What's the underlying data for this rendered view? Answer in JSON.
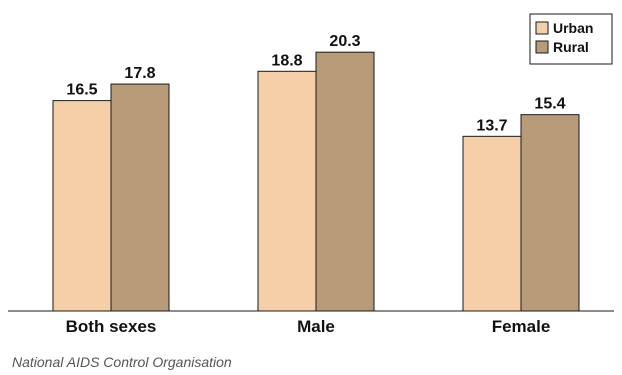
{
  "chart_data": {
    "type": "bar",
    "categories": [
      "Both sexes",
      "Male",
      "Female"
    ],
    "series": [
      {
        "name": "Urban",
        "values": [
          16.5,
          18.8,
          13.7
        ],
        "color": "#f5cfa8"
      },
      {
        "name": "Rural",
        "values": [
          17.8,
          20.3,
          15.4
        ],
        "color": "#b89c7a"
      }
    ],
    "ylim": [
      0,
      22
    ],
    "grid": false,
    "legend_position": "top-right"
  },
  "source": "National AIDS Control Organisation"
}
